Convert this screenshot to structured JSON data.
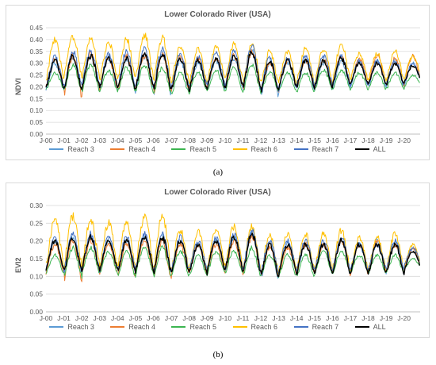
{
  "series_meta": [
    {
      "name": "Reach 3",
      "color": "#5b9bd5"
    },
    {
      "name": "Reach 4",
      "color": "#ed7d31"
    },
    {
      "name": "Reach 5",
      "color": "#3cb550"
    },
    {
      "name": "Reach 6",
      "color": "#ffc000"
    },
    {
      "name": "Reach 7",
      "color": "#4472c4"
    },
    {
      "name": "ALL",
      "color": "#000000"
    }
  ],
  "chart_data": [
    {
      "type": "line",
      "title": "Lower Colorado River (USA)",
      "xlabel": "",
      "ylabel": "NDVI",
      "caption": "(a)",
      "x_tick_labels": [
        "J-00",
        "J-01",
        "J-02",
        "J-03",
        "J-04",
        "J-05",
        "J-06",
        "J-07",
        "J-08",
        "J-09",
        "J-10",
        "J-11",
        "J-12",
        "J-13",
        "J-14",
        "J-15",
        "J-16",
        "J-17",
        "J-18",
        "J-19",
        "J-20"
      ],
      "x_range": [
        2000.0,
        2020.9
      ],
      "ylim": [
        0,
        0.45
      ],
      "y_ticks": [
        "0.00",
        "0.05",
        "0.10",
        "0.15",
        "0.20",
        "0.25",
        "0.30",
        "0.35",
        "0.40",
        "0.45"
      ],
      "y_tick_values": [
        0,
        0.05,
        0.1,
        0.15,
        0.2,
        0.25,
        0.3,
        0.35,
        0.4,
        0.45
      ],
      "grid": true,
      "legend_position": "bottom",
      "seasonal_pattern": "annual cycle: minimum in winter (~January), peak in summer",
      "series": [
        {
          "name": "Reach 3",
          "annual_peak": [
            0.3,
            0.33,
            0.33,
            0.32,
            0.32,
            0.33,
            0.34,
            0.31,
            0.3,
            0.31,
            0.32,
            0.35,
            0.3,
            0.3,
            0.31,
            0.3,
            0.31,
            0.31,
            0.31,
            0.31,
            0.3
          ],
          "annual_trough": [
            0.19,
            0.18,
            0.19,
            0.19,
            0.18,
            0.19,
            0.17,
            0.18,
            0.18,
            0.19,
            0.19,
            0.18,
            0.16,
            0.19,
            0.19,
            0.19,
            0.19,
            0.2,
            0.2,
            0.2,
            0.21
          ]
        },
        {
          "name": "Reach 4",
          "annual_peak": [
            0.32,
            0.33,
            0.34,
            0.32,
            0.33,
            0.33,
            0.34,
            0.33,
            0.32,
            0.32,
            0.33,
            0.35,
            0.3,
            0.31,
            0.31,
            0.32,
            0.33,
            0.32,
            0.33,
            0.32,
            0.33
          ],
          "annual_trough": [
            0.2,
            0.16,
            0.19,
            0.19,
            0.18,
            0.2,
            0.17,
            0.19,
            0.19,
            0.2,
            0.2,
            0.19,
            0.18,
            0.2,
            0.2,
            0.2,
            0.21,
            0.21,
            0.21,
            0.21,
            0.22
          ]
        },
        {
          "name": "Reach 5",
          "annual_peak": [
            0.26,
            0.29,
            0.29,
            0.27,
            0.28,
            0.29,
            0.28,
            0.26,
            0.26,
            0.27,
            0.28,
            0.29,
            0.26,
            0.26,
            0.26,
            0.27,
            0.27,
            0.26,
            0.26,
            0.26,
            0.25
          ],
          "annual_trough": [
            0.19,
            0.18,
            0.18,
            0.18,
            0.18,
            0.18,
            0.17,
            0.17,
            0.18,
            0.18,
            0.18,
            0.18,
            0.18,
            0.18,
            0.18,
            0.19,
            0.19,
            0.19,
            0.19,
            0.19,
            0.2
          ]
        },
        {
          "name": "Reach 6",
          "annual_peak": [
            0.4,
            0.41,
            0.4,
            0.39,
            0.4,
            0.42,
            0.41,
            0.37,
            0.36,
            0.37,
            0.38,
            0.38,
            0.35,
            0.35,
            0.36,
            0.36,
            0.38,
            0.34,
            0.34,
            0.35,
            0.33
          ],
          "annual_trough": [
            0.23,
            0.24,
            0.24,
            0.23,
            0.23,
            0.24,
            0.22,
            0.22,
            0.22,
            0.23,
            0.23,
            0.22,
            0.21,
            0.22,
            0.22,
            0.22,
            0.23,
            0.23,
            0.23,
            0.23,
            0.24
          ]
        },
        {
          "name": "Reach 7",
          "annual_peak": [
            0.33,
            0.35,
            0.35,
            0.34,
            0.35,
            0.36,
            0.36,
            0.34,
            0.33,
            0.34,
            0.35,
            0.37,
            0.32,
            0.32,
            0.33,
            0.33,
            0.33,
            0.31,
            0.31,
            0.31,
            0.3
          ],
          "annual_trough": [
            0.2,
            0.2,
            0.21,
            0.2,
            0.2,
            0.21,
            0.19,
            0.2,
            0.2,
            0.21,
            0.21,
            0.2,
            0.19,
            0.2,
            0.21,
            0.21,
            0.21,
            0.21,
            0.21,
            0.21,
            0.22
          ]
        },
        {
          "name": "ALL",
          "annual_peak": [
            0.31,
            0.33,
            0.33,
            0.32,
            0.32,
            0.34,
            0.34,
            0.32,
            0.31,
            0.32,
            0.33,
            0.35,
            0.31,
            0.31,
            0.31,
            0.31,
            0.32,
            0.3,
            0.3,
            0.3,
            0.29
          ],
          "annual_trough": [
            0.2,
            0.19,
            0.2,
            0.2,
            0.19,
            0.2,
            0.18,
            0.19,
            0.19,
            0.2,
            0.2,
            0.19,
            0.18,
            0.2,
            0.2,
            0.2,
            0.21,
            0.21,
            0.21,
            0.21,
            0.22
          ]
        }
      ]
    },
    {
      "type": "line",
      "title": "Lower Colorado River (USA)",
      "xlabel": "",
      "ylabel": "EVI2",
      "caption": "(b)",
      "x_tick_labels": [
        "J-00",
        "J-01",
        "J-02",
        "J-03",
        "J-04",
        "J-05",
        "J-06",
        "J-07",
        "J-08",
        "J-09",
        "J-10",
        "J-11",
        "J-12",
        "J-13",
        "J-14",
        "J-15",
        "J-16",
        "J-17",
        "J-18",
        "J-19",
        "J-20"
      ],
      "x_range": [
        2000.0,
        2020.9
      ],
      "ylim": [
        0,
        0.3
      ],
      "y_ticks": [
        "0.00",
        "0.05",
        "0.10",
        "0.15",
        "0.20",
        "0.25",
        "0.30"
      ],
      "y_tick_values": [
        0,
        0.05,
        0.1,
        0.15,
        0.2,
        0.25,
        0.3
      ],
      "grid": true,
      "legend_position": "bottom",
      "seasonal_pattern": "annual cycle: minimum in winter (~January), peak in summer",
      "series": [
        {
          "name": "Reach 3",
          "annual_peak": [
            0.2,
            0.21,
            0.21,
            0.2,
            0.2,
            0.21,
            0.21,
            0.2,
            0.19,
            0.2,
            0.21,
            0.22,
            0.19,
            0.19,
            0.19,
            0.19,
            0.2,
            0.19,
            0.2,
            0.2,
            0.18
          ],
          "annual_trough": [
            0.12,
            0.11,
            0.12,
            0.12,
            0.11,
            0.12,
            0.11,
            0.11,
            0.11,
            0.12,
            0.12,
            0.11,
            0.09,
            0.11,
            0.11,
            0.11,
            0.11,
            0.11,
            0.11,
            0.11,
            0.12
          ]
        },
        {
          "name": "Reach 4",
          "annual_peak": [
            0.19,
            0.2,
            0.2,
            0.19,
            0.19,
            0.2,
            0.2,
            0.19,
            0.19,
            0.19,
            0.2,
            0.21,
            0.18,
            0.18,
            0.19,
            0.19,
            0.2,
            0.19,
            0.2,
            0.19,
            0.18
          ],
          "annual_trough": [
            0.11,
            0.09,
            0.11,
            0.11,
            0.1,
            0.11,
            0.09,
            0.11,
            0.11,
            0.11,
            0.11,
            0.11,
            0.1,
            0.11,
            0.11,
            0.11,
            0.11,
            0.11,
            0.11,
            0.11,
            0.12
          ]
        },
        {
          "name": "Reach 5",
          "annual_peak": [
            0.16,
            0.18,
            0.18,
            0.17,
            0.17,
            0.18,
            0.18,
            0.17,
            0.16,
            0.17,
            0.17,
            0.18,
            0.16,
            0.16,
            0.16,
            0.17,
            0.17,
            0.16,
            0.16,
            0.16,
            0.15
          ],
          "annual_trough": [
            0.11,
            0.1,
            0.11,
            0.11,
            0.1,
            0.11,
            0.1,
            0.1,
            0.1,
            0.11,
            0.11,
            0.1,
            0.1,
            0.1,
            0.1,
            0.11,
            0.11,
            0.11,
            0.11,
            0.11,
            0.12
          ]
        },
        {
          "name": "Reach 6",
          "annual_peak": [
            0.26,
            0.27,
            0.26,
            0.25,
            0.25,
            0.27,
            0.27,
            0.23,
            0.23,
            0.23,
            0.24,
            0.24,
            0.22,
            0.22,
            0.22,
            0.22,
            0.23,
            0.21,
            0.21,
            0.22,
            0.19
          ],
          "annual_trough": [
            0.13,
            0.13,
            0.13,
            0.13,
            0.13,
            0.13,
            0.12,
            0.12,
            0.12,
            0.13,
            0.13,
            0.12,
            0.11,
            0.12,
            0.12,
            0.12,
            0.12,
            0.12,
            0.12,
            0.12,
            0.13
          ]
        },
        {
          "name": "Reach 7",
          "annual_peak": [
            0.21,
            0.22,
            0.22,
            0.21,
            0.21,
            0.22,
            0.22,
            0.21,
            0.2,
            0.21,
            0.22,
            0.23,
            0.2,
            0.2,
            0.2,
            0.2,
            0.21,
            0.19,
            0.19,
            0.2,
            0.18
          ],
          "annual_trough": [
            0.12,
            0.12,
            0.12,
            0.12,
            0.12,
            0.12,
            0.11,
            0.12,
            0.12,
            0.12,
            0.12,
            0.12,
            0.11,
            0.12,
            0.12,
            0.12,
            0.12,
            0.12,
            0.12,
            0.12,
            0.13
          ]
        },
        {
          "name": "ALL",
          "annual_peak": [
            0.2,
            0.21,
            0.21,
            0.2,
            0.2,
            0.21,
            0.21,
            0.2,
            0.19,
            0.2,
            0.21,
            0.22,
            0.19,
            0.19,
            0.19,
            0.19,
            0.2,
            0.19,
            0.19,
            0.19,
            0.17
          ],
          "annual_trough": [
            0.12,
            0.11,
            0.12,
            0.12,
            0.11,
            0.12,
            0.11,
            0.11,
            0.11,
            0.12,
            0.12,
            0.11,
            0.1,
            0.11,
            0.11,
            0.11,
            0.11,
            0.11,
            0.11,
            0.11,
            0.12
          ]
        }
      ]
    }
  ]
}
